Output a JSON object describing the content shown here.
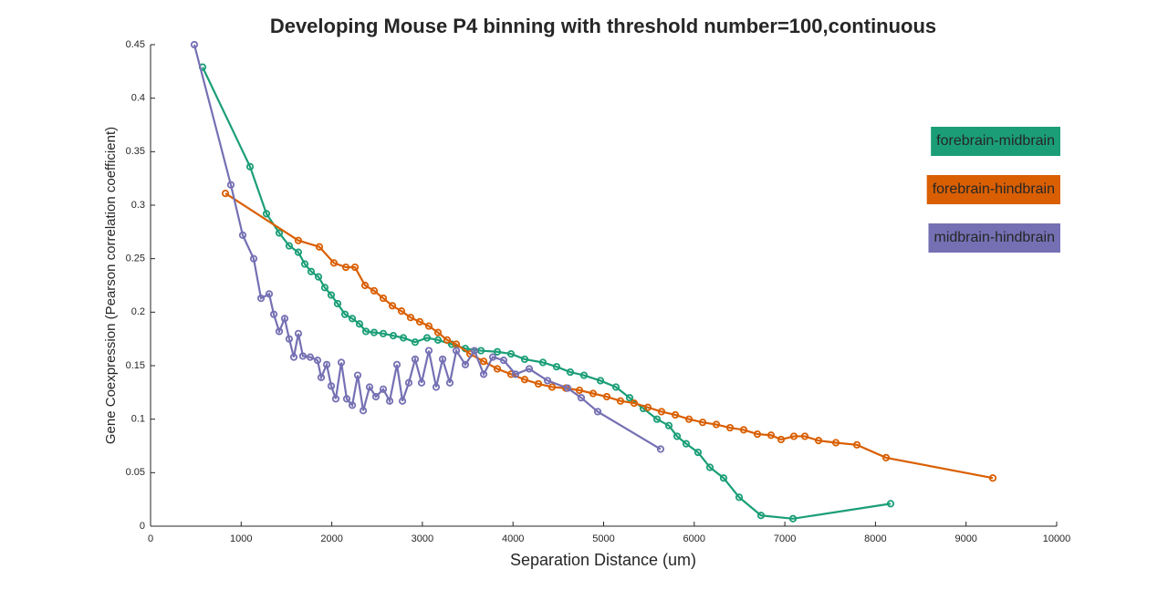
{
  "chart_data": {
    "type": "line",
    "title": "Developing Mouse P4 binning with threshold number=100,continuous",
    "x_label": "Separation Distance (um)",
    "y_label": "Gene Coexpression (Pearson correlation coefficient)",
    "xlim": [
      0,
      10000
    ],
    "xticks": [
      0,
      1000,
      2000,
      3000,
      4000,
      5000,
      6000,
      7000,
      8000,
      9000,
      10000
    ],
    "ylim": [
      0,
      0.45
    ],
    "yticks": [
      0,
      0.05,
      0.1,
      0.15,
      0.2,
      0.25,
      0.3,
      0.35,
      0.4,
      0.45
    ],
    "grid": false,
    "legend": "upper right",
    "series": [
      {
        "name": "forebrain-midbrain",
        "color": "#1b9e77",
        "x": [
          574,
          1098,
          1279,
          1420,
          1530,
          1631,
          1702,
          1772,
          1853,
          1923,
          1994,
          2064,
          2145,
          2226,
          2306,
          2377,
          2467,
          2568,
          2679,
          2790,
          2920,
          3051,
          3172,
          3323,
          3474,
          3646,
          3827,
          3978,
          4129,
          4330,
          4481,
          4632,
          4783,
          4965,
          5136,
          5287,
          5438,
          5589,
          5720,
          5811,
          5911,
          6042,
          6173,
          6324,
          6496,
          6737,
          7090,
          8167
        ],
        "values": [
          0.429,
          0.336,
          0.292,
          0.274,
          0.262,
          0.256,
          0.245,
          0.238,
          0.233,
          0.223,
          0.216,
          0.208,
          0.198,
          0.194,
          0.189,
          0.182,
          0.181,
          0.18,
          0.178,
          0.176,
          0.172,
          0.176,
          0.174,
          0.17,
          0.166,
          0.164,
          0.163,
          0.161,
          0.156,
          0.153,
          0.149,
          0.144,
          0.141,
          0.136,
          0.13,
          0.12,
          0.11,
          0.1,
          0.094,
          0.084,
          0.077,
          0.069,
          0.055,
          0.045,
          0.027,
          0.01,
          0.007,
          0.021
        ]
      },
      {
        "name": "forebrain-hindbrain",
        "color": "#d95f02",
        "x": [
          826,
          1631,
          1863,
          2024,
          2155,
          2256,
          2367,
          2467,
          2568,
          2669,
          2769,
          2870,
          2971,
          3071,
          3172,
          3273,
          3374,
          3525,
          3676,
          3827,
          3978,
          4129,
          4280,
          4431,
          4582,
          4733,
          4884,
          5035,
          5186,
          5337,
          5488,
          5639,
          5791,
          5942,
          6093,
          6244,
          6395,
          6546,
          6697,
          6848,
          6959,
          7100,
          7221,
          7372,
          7563,
          7795,
          8117,
          9295
        ],
        "values": [
          0.311,
          0.267,
          0.261,
          0.246,
          0.242,
          0.242,
          0.225,
          0.22,
          0.213,
          0.206,
          0.201,
          0.195,
          0.191,
          0.187,
          0.181,
          0.174,
          0.17,
          0.161,
          0.154,
          0.147,
          0.142,
          0.137,
          0.133,
          0.13,
          0.129,
          0.127,
          0.124,
          0.121,
          0.117,
          0.115,
          0.111,
          0.107,
          0.104,
          0.1,
          0.097,
          0.095,
          0.092,
          0.09,
          0.086,
          0.085,
          0.081,
          0.084,
          0.084,
          0.08,
          0.078,
          0.076,
          0.064,
          0.045
        ]
      },
      {
        "name": "midbrain-hindbrain",
        "color": "#7570b3",
        "x": [
          483,
          886,
          1017,
          1138,
          1219,
          1309,
          1360,
          1420,
          1480,
          1530,
          1581,
          1631,
          1681,
          1762,
          1843,
          1883,
          1944,
          1994,
          2044,
          2105,
          2165,
          2226,
          2286,
          2347,
          2417,
          2487,
          2568,
          2639,
          2719,
          2780,
          2850,
          2920,
          2991,
          3071,
          3152,
          3223,
          3303,
          3374,
          3474,
          3575,
          3676,
          3777,
          3897,
          4028,
          4179,
          4381,
          4602,
          4753,
          4935,
          5629
        ],
        "values": [
          0.45,
          0.319,
          0.272,
          0.25,
          0.213,
          0.217,
          0.198,
          0.182,
          0.194,
          0.175,
          0.158,
          0.18,
          0.159,
          0.158,
          0.155,
          0.139,
          0.151,
          0.131,
          0.119,
          0.153,
          0.119,
          0.113,
          0.141,
          0.108,
          0.13,
          0.121,
          0.128,
          0.117,
          0.151,
          0.117,
          0.134,
          0.156,
          0.134,
          0.164,
          0.13,
          0.156,
          0.134,
          0.164,
          0.151,
          0.164,
          0.142,
          0.158,
          0.155,
          0.142,
          0.147,
          0.136,
          0.129,
          0.12,
          0.107,
          0.072
        ]
      }
    ]
  }
}
